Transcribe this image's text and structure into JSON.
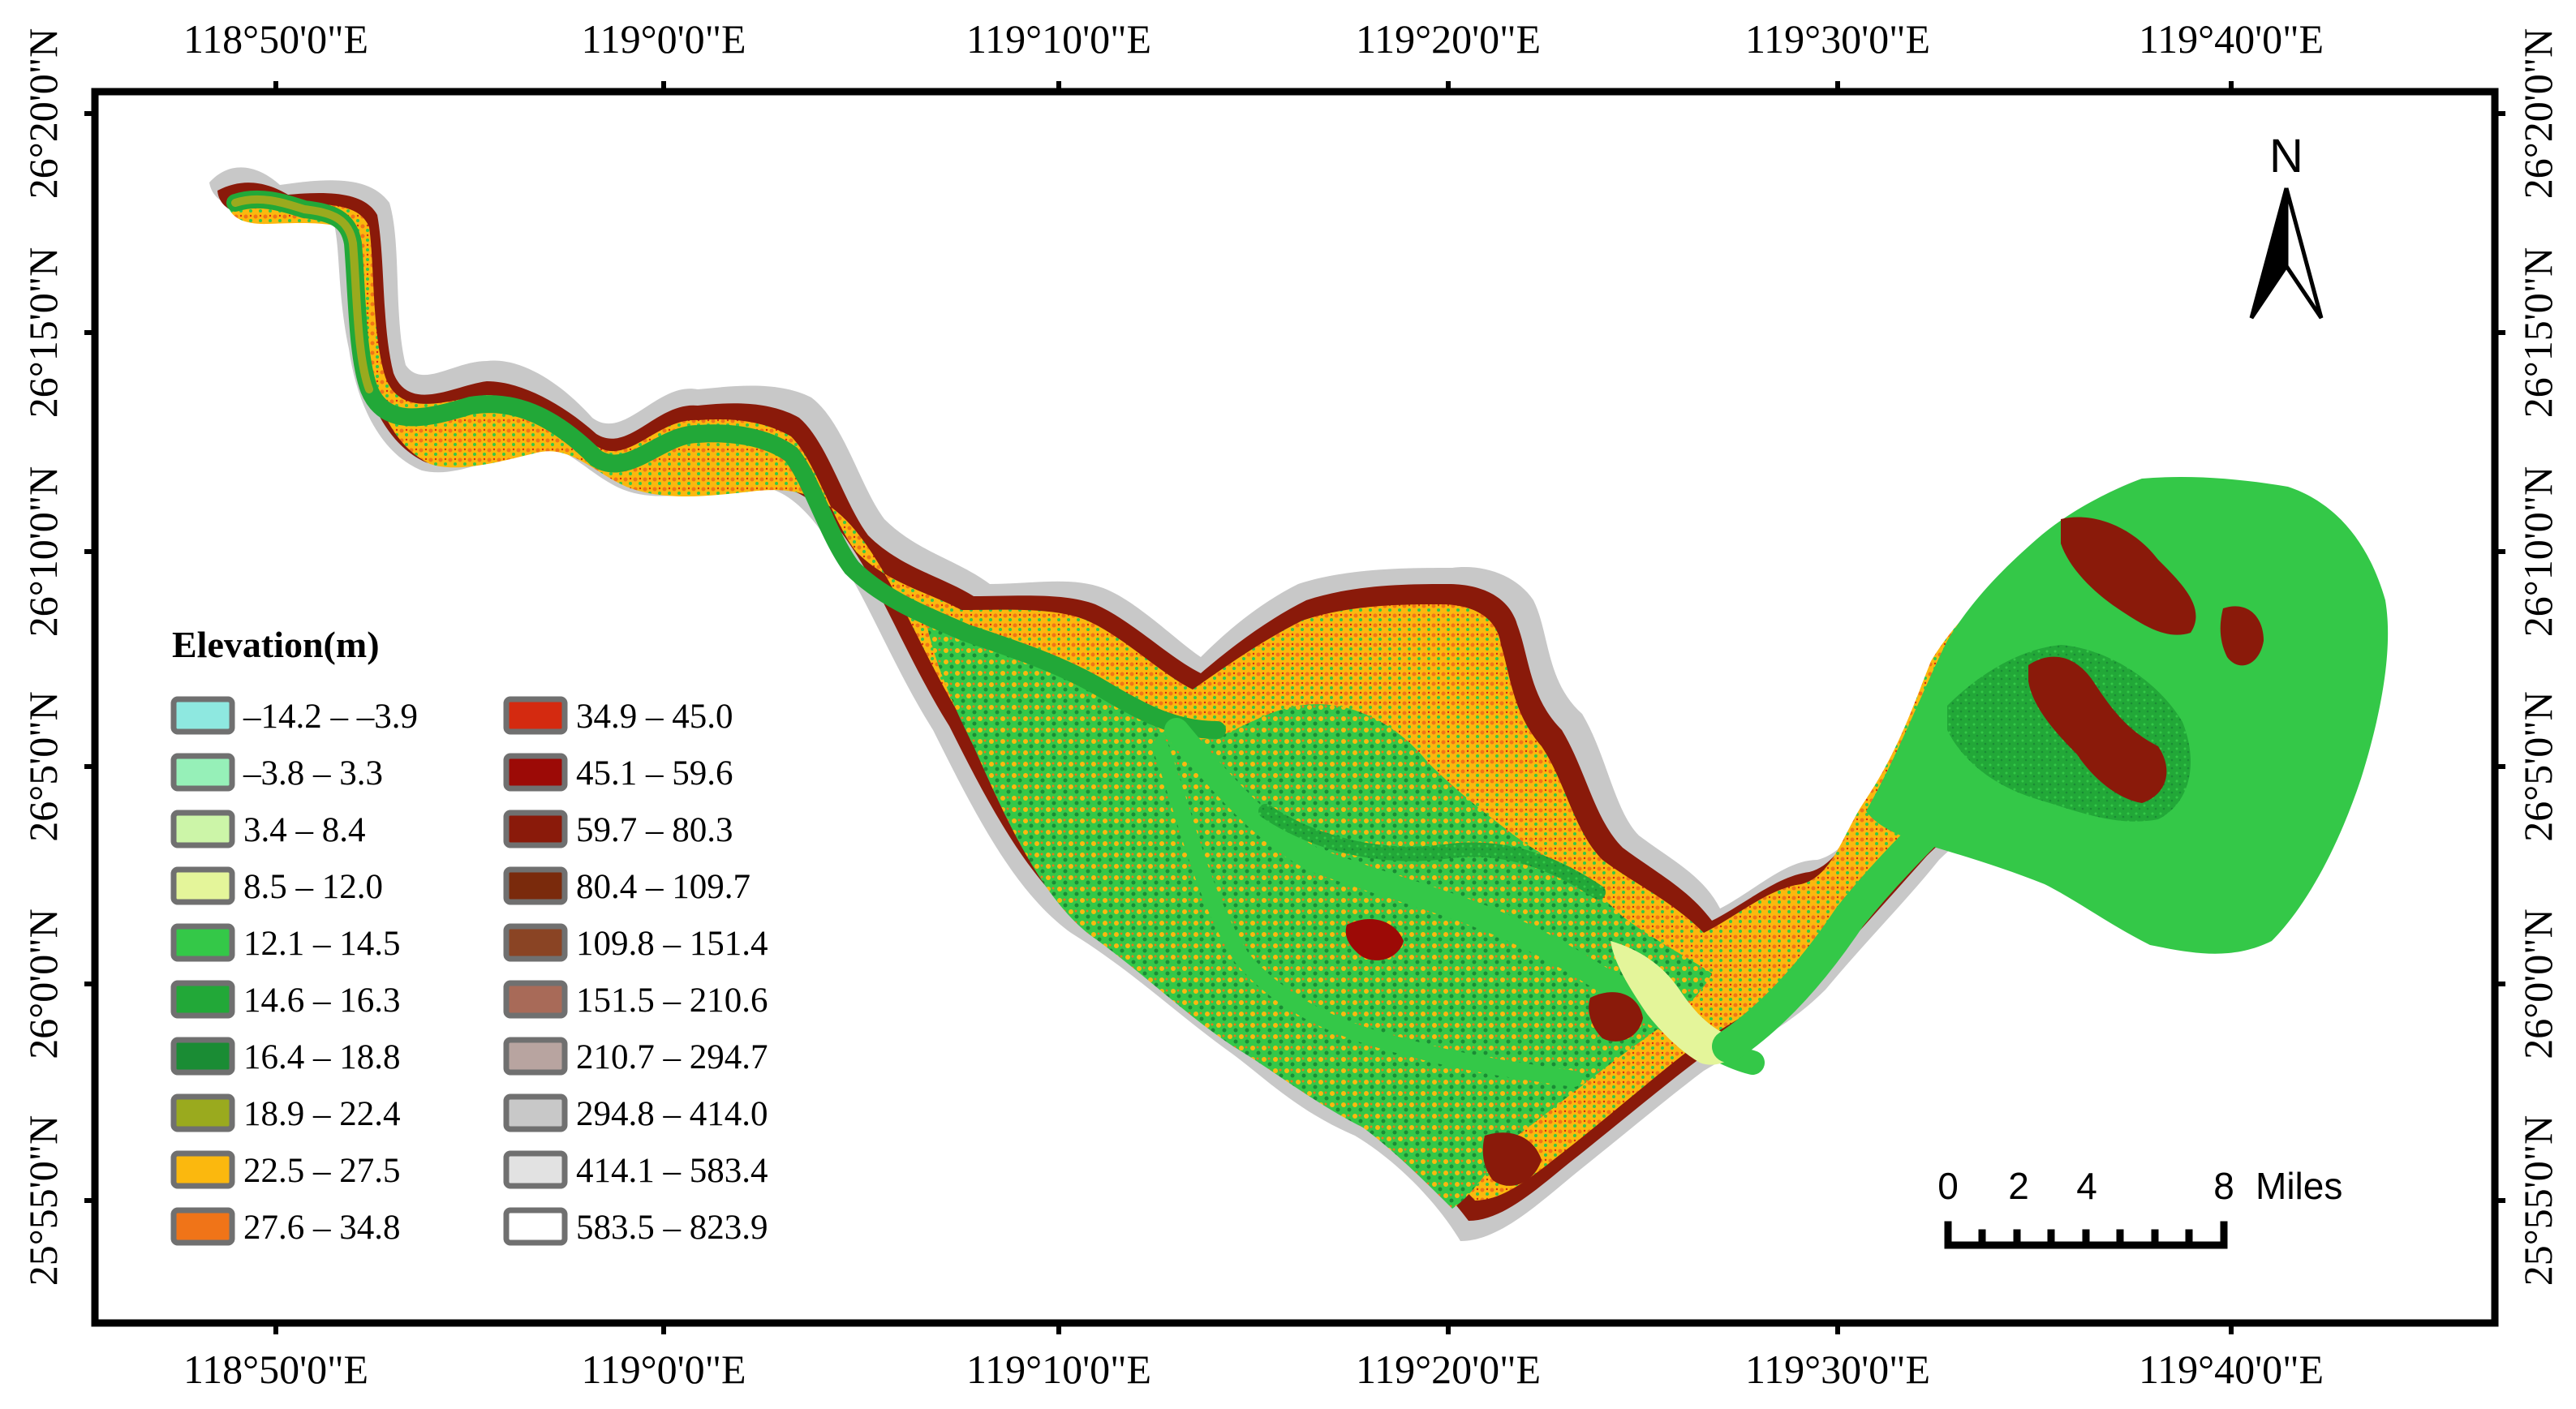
{
  "map": {
    "top_ticks": [
      "118°50'0\"E",
      "119°0'0\"E",
      "119°10'0\"E",
      "119°20'0\"E",
      "119°30'0\"E",
      "119°40'0\"E"
    ],
    "bottom_ticks": [
      "118°50'0\"E",
      "119°0'0\"E",
      "119°10'0\"E",
      "119°20'0\"E",
      "119°30'0\"E",
      "119°40'0\"E"
    ],
    "left_ticks": [
      "26°20'0\"N",
      "26°15'0\"N",
      "26°10'0\"N",
      "26°5'0\"N",
      "26°0'0\"N",
      "25°55'0\"N"
    ],
    "right_ticks": [
      "26°20'0\"N",
      "26°15'0\"N",
      "26°10'0\"N",
      "26°5'0\"N",
      "26°0'0\"N",
      "25°55'0\"N"
    ]
  },
  "legend": {
    "title": "Elevation(m)",
    "items": [
      {
        "label": "–14.2 – –3.9",
        "color": "#8ee8e0"
      },
      {
        "label": "–3.8 – 3.3",
        "color": "#96f0b8"
      },
      {
        "label": "3.4 – 8.4",
        "color": "#ccf5a8"
      },
      {
        "label": "8.5 – 12.0",
        "color": "#e4f59a"
      },
      {
        "label": "12.1 – 14.5",
        "color": "#34c848"
      },
      {
        "label": "14.6 – 16.3",
        "color": "#22a838"
      },
      {
        "label": "16.4 – 18.8",
        "color": "#1a8c34"
      },
      {
        "label": "18.9 – 22.4",
        "color": "#9aaa1e"
      },
      {
        "label": "22.5 – 27.5",
        "color": "#fbb80e"
      },
      {
        "label": "27.6 – 34.8",
        "color": "#f07418"
      },
      {
        "label": "34.9 – 45.0",
        "color": "#d42a10"
      },
      {
        "label": "45.1 – 59.6",
        "color": "#9c0a06"
      },
      {
        "label": "59.7 – 80.3",
        "color": "#8a1a0a"
      },
      {
        "label": "80.4 – 109.7",
        "color": "#7a2a0c"
      },
      {
        "label": "109.8 – 151.4",
        "color": "#8a4424"
      },
      {
        "label": "151.5 – 210.6",
        "color": "#a86a58"
      },
      {
        "label": "210.7 – 294.7",
        "color": "#b8a4a0"
      },
      {
        "label": "294.8 – 414.0",
        "color": "#c8c8c8"
      },
      {
        "label": "414.1 – 583.4",
        "color": "#e2e2e2"
      },
      {
        "label": "583.5 – 823.9",
        "color": "#ffffff"
      }
    ]
  },
  "north_arrow": {
    "label": "N"
  },
  "scale_bar": {
    "labels": [
      "0",
      "2",
      "4",
      "8"
    ],
    "unit": "Miles"
  }
}
